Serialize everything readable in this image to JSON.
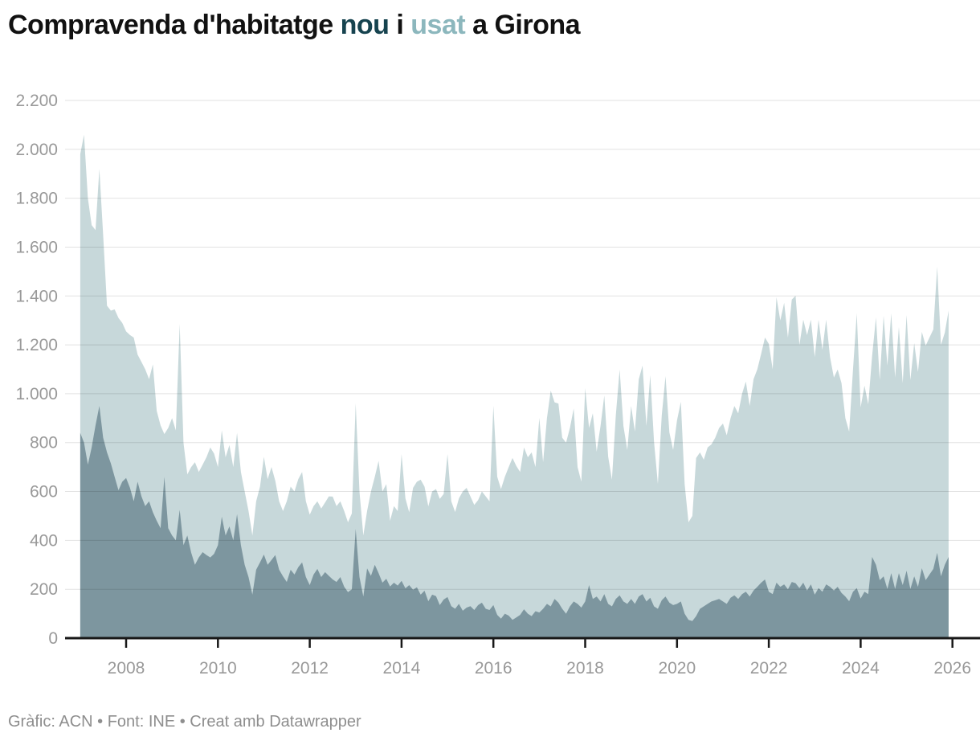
{
  "title": {
    "prefix": "Compravenda d'habitatge ",
    "key_nou": "nou",
    "mid": " i ",
    "key_usat": "usat",
    "suffix": " a Girona"
  },
  "footer": {
    "text": "Gràfic: ACN • Font: INE • Creat amb Datawrapper"
  },
  "colors": {
    "title_text": "#111111",
    "title_key_nou": "#16434f",
    "title_key_usat": "#8cb7bd",
    "area_usat": "#c7d8da",
    "area_nou": "#7d969f",
    "axis_line": "#181818",
    "gridline": "rgba(17,17,17,0.12)",
    "tick_label": "#999999",
    "footer_text": "#8e8e8e",
    "background": "#ffffff"
  },
  "chart_data": {
    "type": "area",
    "title": "Compravenda d'habitatge nou i usat a Girona",
    "legend_position": "in-title",
    "grid": true,
    "x_frequency": "monthly",
    "x_start_month": "2007-01",
    "x_end_month": "2025-12",
    "xlim": [
      2006.67,
      2026.6
    ],
    "ylim": [
      0,
      2200
    ],
    "x_ticks": {
      "values": [
        2008,
        2010,
        2012,
        2014,
        2016,
        2018,
        2020,
        2022,
        2024,
        2026
      ],
      "labels": [
        "2008",
        "2010",
        "2012",
        "2014",
        "2016",
        "2018",
        "2020",
        "2022",
        "2024",
        "2026"
      ]
    },
    "y_ticks": {
      "values": [
        0,
        200,
        400,
        600,
        800,
        1000,
        1200,
        1400,
        1600,
        1800,
        2000,
        2200
      ],
      "labels": [
        "0",
        "200",
        "400",
        "600",
        "800",
        "1.000",
        "1.200",
        "1.400",
        "1.600",
        "1.800",
        "2.000",
        "2.200"
      ]
    },
    "series": [
      {
        "name": "usat",
        "color": "#c7d8da",
        "values": [
          1980,
          2060,
          1800,
          1690,
          1670,
          1920,
          1650,
          1360,
          1340,
          1345,
          1310,
          1290,
          1255,
          1240,
          1230,
          1160,
          1130,
          1100,
          1060,
          1120,
          930,
          870,
          835,
          860,
          900,
          850,
          1285,
          800,
          670,
          700,
          720,
          680,
          710,
          740,
          780,
          755,
          700,
          850,
          740,
          790,
          700,
          840,
          680,
          600,
          520,
          420,
          560,
          620,
          742,
          650,
          700,
          644,
          560,
          520,
          560,
          620,
          600,
          650,
          680,
          560,
          505,
          540,
          560,
          530,
          555,
          580,
          579,
          540,
          560,
          520,
          474,
          510,
          961,
          600,
          420,
          520,
          600,
          660,
          725,
          600,
          630,
          480,
          540,
          520,
          753,
          572,
          515,
          615,
          640,
          648,
          620,
          539,
          600,
          610,
          570,
          590,
          753,
          560,
          516,
          572,
          600,
          615,
          580,
          545,
          565,
          600,
          580,
          560,
          951,
          660,
          610,
          660,
          700,
          737,
          704,
          680,
          780,
          740,
          760,
          700,
          901,
          720,
          900,
          1013,
          965,
          960,
          820,
          800,
          860,
          940,
          700,
          640,
          1023,
          860,
          920,
          763,
          868,
          993,
          743,
          648,
          911,
          1099,
          868,
          770,
          950,
          845,
          1059,
          1115,
          868,
          1076,
          803,
          631,
          911,
          1072,
          842,
          770,
          891,
          967,
          631,
          474,
          500,
          737,
          760,
          730,
          780,
          793,
          820,
          860,
          878,
          830,
          900,
          950,
          920,
          1000,
          1050,
          950,
          1060,
          1100,
          1164,
          1230,
          1204,
          1100,
          1395,
          1300,
          1372,
          1230,
          1385,
          1401,
          1200,
          1303,
          1240,
          1303,
          1150,
          1303,
          1180,
          1303,
          1150,
          1066,
          1099,
          1043,
          900,
          845,
          1099,
          1329,
          944,
          1033,
          957,
          1155,
          1312,
          1056,
          1319,
          1115,
          1329,
          1066,
          1273,
          1043,
          1322,
          1056,
          1207,
          1089,
          1253,
          1197,
          1230,
          1263,
          1520,
          1200,
          1250,
          1340
        ]
      },
      {
        "name": "nou",
        "color": "#7d969f",
        "values": [
          840,
          800,
          710,
          780,
          870,
          950,
          820,
          760,
          715,
          660,
          605,
          640,
          655,
          615,
          560,
          640,
          580,
          540,
          560,
          515,
          480,
          450,
          660,
          450,
          420,
          400,
          525,
          380,
          420,
          350,
          300,
          330,
          352,
          340,
          330,
          345,
          380,
          497,
          420,
          457,
          400,
          507,
          380,
          300,
          250,
          178,
          280,
          310,
          342,
          300,
          320,
          340,
          280,
          253,
          230,
          280,
          260,
          290,
          310,
          250,
          217,
          260,
          283,
          250,
          270,
          255,
          240,
          230,
          250,
          210,
          188,
          200,
          447,
          250,
          170,
          285,
          255,
          300,
          266,
          227,
          243,
          211,
          227,
          215,
          234,
          204,
          217,
          198,
          208,
          178,
          194,
          151,
          178,
          172,
          135,
          158,
          168,
          131,
          120,
          140,
          112,
          125,
          131,
          115,
          135,
          145,
          120,
          115,
          135,
          95,
          80,
          100,
          92,
          75,
          85,
          95,
          118,
          100,
          90,
          110,
          105,
          120,
          140,
          130,
          160,
          145,
          120,
          100,
          130,
          150,
          140,
          125,
          150,
          217,
          160,
          170,
          150,
          180,
          140,
          130,
          160,
          175,
          150,
          140,
          160,
          140,
          170,
          180,
          150,
          165,
          130,
          120,
          155,
          170,
          145,
          135,
          140,
          150,
          100,
          75,
          70,
          90,
          120,
          130,
          140,
          150,
          155,
          160,
          150,
          140,
          165,
          175,
          160,
          180,
          190,
          170,
          195,
          210,
          227,
          240,
          190,
          180,
          227,
          210,
          220,
          200,
          230,
          225,
          205,
          227,
          195,
          220,
          178,
          205,
          190,
          220,
          210,
          195,
          210,
          185,
          170,
          151,
          190,
          205,
          162,
          190,
          180,
          332,
          300,
          237,
          253,
          201,
          266,
          201,
          266,
          217,
          276,
          201,
          253,
          210,
          286,
          237,
          260,
          283,
          349,
          253,
          300,
          332
        ]
      }
    ]
  }
}
